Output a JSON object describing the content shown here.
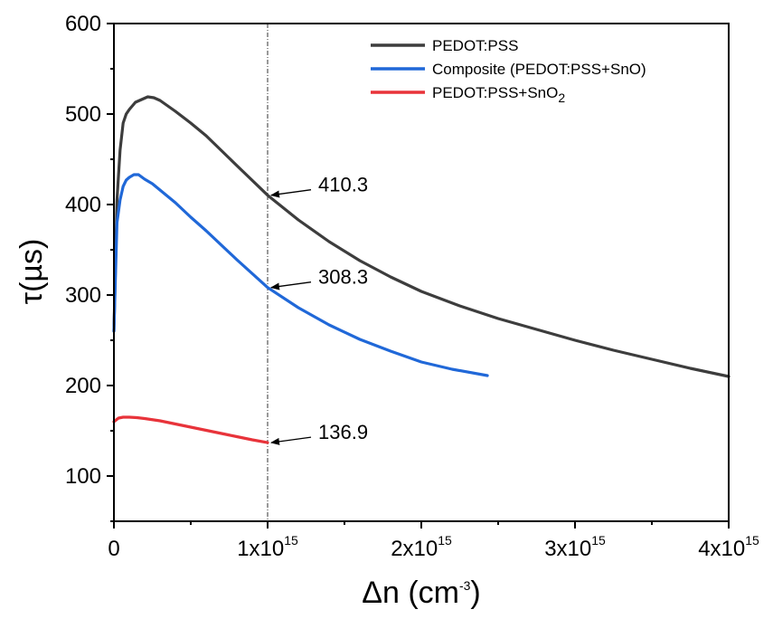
{
  "chart_data": {
    "type": "line",
    "title": "",
    "xlabel": "Δn (cm-3)",
    "ylabel": "τ(µs)",
    "xlim": [
      0,
      4000000000000000.0
    ],
    "ylim": [
      50,
      600
    ],
    "x_ticks": [
      {
        "value": 0,
        "base": "0",
        "exp": ""
      },
      {
        "value": 1000000000000000.0,
        "base": "1x10",
        "exp": "15"
      },
      {
        "value": 2000000000000000.0,
        "base": "2x10",
        "exp": "15"
      },
      {
        "value": 3000000000000000.0,
        "base": "3x10",
        "exp": "15"
      },
      {
        "value": 4000000000000000.0,
        "base": "4x10",
        "exp": "15"
      }
    ],
    "y_ticks": [
      100,
      200,
      300,
      400,
      500,
      600
    ],
    "y_tick_labels": [
      "100",
      "200",
      "300",
      "400",
      "500",
      "600"
    ],
    "legend_position": "top-right",
    "reference_line_x": 1000000000000000.0,
    "series": [
      {
        "name": "PEDOT:PSS",
        "color": "#3d3d3d",
        "x": [
          0.0,
          20000000000000.0,
          40000000000000.0,
          60000000000000.0,
          80000000000000.0,
          100000000000000.0,
          140000000000000.0,
          180000000000000.0,
          220000000000000.0,
          260000000000000.0,
          300000000000000.0,
          400000000000000.0,
          500000000000000.0,
          600000000000000.0,
          800000000000000.0,
          1000000000000000.0,
          1200000000000000.0,
          1400000000000000.0,
          1600000000000000.0,
          1800000000000000.0,
          2000000000000000.0,
          2250000000000000.0,
          2500000000000000.0,
          2750000000000000.0,
          3000000000000000.0,
          3250000000000000.0,
          3500000000000000.0,
          3750000000000000.0,
          4000000000000000.0
        ],
        "y": [
          260,
          405,
          460,
          490,
          500,
          505,
          513,
          516,
          519,
          518,
          515,
          503,
          490,
          476,
          443,
          410.3,
          383,
          359,
          338,
          320,
          304,
          288,
          274,
          262,
          250,
          239,
          229,
          219,
          210
        ]
      },
      {
        "name": "Composite (PEDOT:PSS+SnO)",
        "color": "#2068d8",
        "x": [
          0.0,
          20000000000000.0,
          40000000000000.0,
          60000000000000.0,
          80000000000000.0,
          100000000000000.0,
          130000000000000.0,
          160000000000000.0,
          200000000000000.0,
          250000000000000.0,
          300000000000000.0,
          400000000000000.0,
          500000000000000.0,
          600000000000000.0,
          800000000000000.0,
          1000000000000000.0,
          1200000000000000.0,
          1400000000000000.0,
          1600000000000000.0,
          1800000000000000.0,
          2000000000000000.0,
          2200000000000000.0,
          2430000000000000.0
        ],
        "y": [
          260,
          380,
          405,
          420,
          427,
          430,
          433,
          433,
          428,
          423,
          416,
          402,
          386,
          371,
          339,
          308.3,
          286,
          267,
          251,
          238,
          226,
          218,
          211
        ]
      },
      {
        "name": "PEDOT:PSS+SnO2",
        "name_main": "PEDOT:PSS+SnO",
        "name_sub": "2",
        "color": "#e8333a",
        "x": [
          0.0,
          30000000000000.0,
          60000000000000.0,
          100000000000000.0,
          150000000000000.0,
          200000000000000.0,
          300000000000000.0,
          400000000000000.0,
          500000000000000.0,
          600000000000000.0,
          700000000000000.0,
          800000000000000.0,
          900000000000000.0,
          1000000000000000.0
        ],
        "y": [
          160,
          164,
          165,
          165,
          164.5,
          163.5,
          161,
          157.5,
          154,
          150.5,
          147,
          143.5,
          140,
          136.9
        ]
      }
    ],
    "annotations": [
      {
        "text": "410.3",
        "x": 1000000000000000.0,
        "y": 410.3
      },
      {
        "text": "308.3",
        "x": 1000000000000000.0,
        "y": 308.3
      },
      {
        "text": "136.9",
        "x": 1000000000000000.0,
        "y": 136.9
      }
    ]
  }
}
